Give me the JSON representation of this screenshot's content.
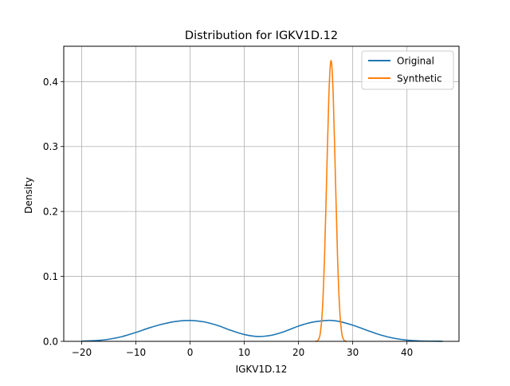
{
  "chart_data": {
    "type": "line",
    "title": "Distribution for IGKV1D.12",
    "xlabel": "IGKV1D.12",
    "ylabel": "Density",
    "xlim": [
      -23.3,
      49.6
    ],
    "ylim": [
      0,
      0.4544
    ],
    "x_ticks": [
      -20,
      -10,
      0,
      10,
      20,
      30,
      40
    ],
    "x_tick_labels": [
      "−20",
      "−10",
      "0",
      "10",
      "20",
      "30",
      "40"
    ],
    "y_ticks": [
      0.0,
      0.1,
      0.2,
      0.3,
      0.4
    ],
    "y_tick_labels": [
      "0.0",
      "0.1",
      "0.2",
      "0.3",
      "0.4"
    ],
    "grid": true,
    "legend_position": "top-right",
    "series": [
      {
        "name": "Original",
        "color": "#1f77b4",
        "x": [
          -20,
          -17.5,
          -15,
          -12.5,
          -10,
          -7.5,
          -5,
          -2.5,
          0,
          2.5,
          5,
          7.5,
          10,
          12.5,
          15,
          17.5,
          20,
          22.5,
          25,
          26,
          27.5,
          30,
          32.5,
          35,
          37.5,
          40,
          42.5,
          46.5
        ],
        "y": [
          0.0003,
          0.0011,
          0.0032,
          0.0074,
          0.0137,
          0.0208,
          0.0267,
          0.0308,
          0.0322,
          0.0301,
          0.0247,
          0.017,
          0.0105,
          0.0075,
          0.0094,
          0.0154,
          0.0235,
          0.0294,
          0.032,
          0.0322,
          0.0306,
          0.0249,
          0.0174,
          0.0101,
          0.0049,
          0.0019,
          0.0006,
          0.0001
        ]
      },
      {
        "name": "Synthetic",
        "color": "#ff7f0e",
        "x": [
          23.2,
          23.6,
          24.0,
          24.4,
          24.8,
          25.2,
          25.6,
          26.0,
          26.4,
          26.8,
          27.2,
          27.6,
          28.0,
          28.4,
          28.8
        ],
        "y": [
          0.0,
          0.0017,
          0.0115,
          0.0478,
          0.1299,
          0.2549,
          0.3795,
          0.4325,
          0.3795,
          0.2549,
          0.1299,
          0.0478,
          0.0115,
          0.0017,
          0.0
        ]
      }
    ]
  }
}
